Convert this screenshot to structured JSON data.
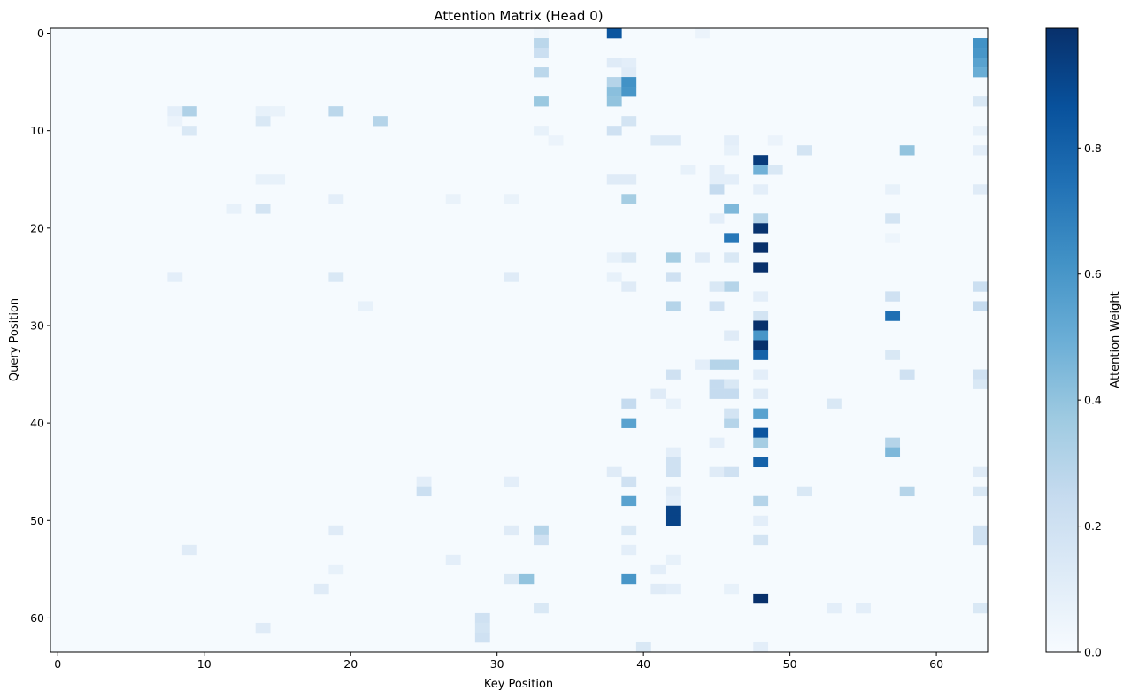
{
  "chart_data": {
    "type": "heatmap",
    "title": "Attention Matrix (Head 0)",
    "xlabel": "Key Position",
    "ylabel": "Query Position",
    "colorbar_label": "Attention Weight",
    "colormap": "Blues",
    "rows": 64,
    "cols": 64,
    "xlim": [
      -0.5,
      63.5
    ],
    "ylim": [
      63.5,
      -0.5
    ],
    "xticks": [
      0,
      10,
      20,
      30,
      40,
      50,
      60
    ],
    "yticks": [
      0,
      10,
      20,
      30,
      40,
      50,
      60
    ],
    "colorbar_range": [
      0.0,
      0.99
    ],
    "colorbar_ticks": [
      0.0,
      0.2,
      0.4,
      0.6,
      0.8
    ],
    "colorbar_tick_labels": [
      "0.0",
      "0.2",
      "0.4",
      "0.6",
      "0.8"
    ],
    "background_value": 0.01,
    "cells": [
      [
        0,
        38,
        0.85
      ],
      [
        0,
        44,
        0.06
      ],
      [
        0,
        33,
        0.04
      ],
      [
        1,
        33,
        0.28
      ],
      [
        1,
        63,
        0.62
      ],
      [
        2,
        33,
        0.22
      ],
      [
        2,
        63,
        0.6
      ],
      [
        3,
        63,
        0.55
      ],
      [
        4,
        63,
        0.5
      ],
      [
        4,
        33,
        0.28
      ],
      [
        3,
        39,
        0.1
      ],
      [
        4,
        39,
        0.12
      ],
      [
        5,
        38,
        0.3
      ],
      [
        5,
        39,
        0.62
      ],
      [
        6,
        38,
        0.42
      ],
      [
        6,
        39,
        0.6
      ],
      [
        7,
        38,
        0.4
      ],
      [
        7,
        33,
        0.38
      ],
      [
        7,
        63,
        0.15
      ],
      [
        3,
        38,
        0.12
      ],
      [
        8,
        9,
        0.32
      ],
      [
        8,
        19,
        0.28
      ],
      [
        8,
        8,
        0.1
      ],
      [
        8,
        14,
        0.08
      ],
      [
        8,
        15,
        0.07
      ],
      [
        9,
        14,
        0.15
      ],
      [
        9,
        22,
        0.3
      ],
      [
        9,
        39,
        0.18
      ],
      [
        9,
        8,
        0.06
      ],
      [
        10,
        9,
        0.15
      ],
      [
        10,
        38,
        0.2
      ],
      [
        10,
        63,
        0.08
      ],
      [
        10,
        33,
        0.08
      ],
      [
        11,
        41,
        0.14
      ],
      [
        11,
        42,
        0.14
      ],
      [
        11,
        46,
        0.1
      ],
      [
        11,
        49,
        0.06
      ],
      [
        11,
        34,
        0.06
      ],
      [
        12,
        51,
        0.18
      ],
      [
        12,
        58,
        0.4
      ],
      [
        12,
        46,
        0.08
      ],
      [
        12,
        63,
        0.1
      ],
      [
        13,
        48,
        0.95
      ],
      [
        14,
        48,
        0.48
      ],
      [
        14,
        49,
        0.15
      ],
      [
        14,
        43,
        0.08
      ],
      [
        14,
        45,
        0.1
      ],
      [
        15,
        38,
        0.12
      ],
      [
        15,
        39,
        0.12
      ],
      [
        15,
        45,
        0.1
      ],
      [
        15,
        46,
        0.1
      ],
      [
        15,
        14,
        0.08
      ],
      [
        15,
        15,
        0.08
      ],
      [
        16,
        45,
        0.25
      ],
      [
        16,
        48,
        0.1
      ],
      [
        16,
        63,
        0.12
      ],
      [
        16,
        57,
        0.08
      ],
      [
        17,
        39,
        0.35
      ],
      [
        17,
        19,
        0.1
      ],
      [
        17,
        27,
        0.07
      ],
      [
        17,
        31,
        0.07
      ],
      [
        18,
        46,
        0.45
      ],
      [
        18,
        14,
        0.18
      ],
      [
        18,
        12,
        0.08
      ],
      [
        19,
        48,
        0.3
      ],
      [
        19,
        57,
        0.18
      ],
      [
        19,
        45,
        0.1
      ],
      [
        20,
        48,
        0.98
      ],
      [
        21,
        46,
        0.72
      ],
      [
        21,
        57,
        0.05
      ],
      [
        22,
        48,
        0.99
      ],
      [
        23,
        42,
        0.35
      ],
      [
        23,
        39,
        0.15
      ],
      [
        23,
        44,
        0.12
      ],
      [
        23,
        46,
        0.15
      ],
      [
        23,
        38,
        0.08
      ],
      [
        24,
        48,
        0.99
      ],
      [
        25,
        19,
        0.15
      ],
      [
        25,
        8,
        0.1
      ],
      [
        25,
        31,
        0.12
      ],
      [
        25,
        42,
        0.2
      ],
      [
        25,
        38,
        0.08
      ],
      [
        26,
        46,
        0.3
      ],
      [
        26,
        45,
        0.15
      ],
      [
        26,
        63,
        0.22
      ],
      [
        26,
        39,
        0.12
      ],
      [
        27,
        48,
        0.1
      ],
      [
        27,
        57,
        0.2
      ],
      [
        28,
        42,
        0.3
      ],
      [
        28,
        45,
        0.2
      ],
      [
        28,
        63,
        0.25
      ],
      [
        28,
        21,
        0.08
      ],
      [
        29,
        57,
        0.75
      ],
      [
        29,
        48,
        0.18
      ],
      [
        30,
        48,
        0.99
      ],
      [
        31,
        48,
        0.6
      ],
      [
        31,
        46,
        0.12
      ],
      [
        32,
        48,
        0.99
      ],
      [
        33,
        48,
        0.8
      ],
      [
        33,
        57,
        0.15
      ],
      [
        34,
        45,
        0.3
      ],
      [
        34,
        46,
        0.3
      ],
      [
        34,
        44,
        0.1
      ],
      [
        35,
        42,
        0.2
      ],
      [
        35,
        58,
        0.2
      ],
      [
        35,
        63,
        0.2
      ],
      [
        35,
        48,
        0.1
      ],
      [
        36,
        45,
        0.25
      ],
      [
        36,
        46,
        0.15
      ],
      [
        36,
        63,
        0.15
      ],
      [
        37,
        41,
        0.12
      ],
      [
        37,
        45,
        0.25
      ],
      [
        37,
        46,
        0.25
      ],
      [
        37,
        48,
        0.12
      ],
      [
        38,
        39,
        0.25
      ],
      [
        38,
        42,
        0.08
      ],
      [
        38,
        53,
        0.15
      ],
      [
        39,
        46,
        0.18
      ],
      [
        39,
        48,
        0.55
      ],
      [
        40,
        39,
        0.55
      ],
      [
        40,
        46,
        0.3
      ],
      [
        41,
        48,
        0.85
      ],
      [
        42,
        48,
        0.35
      ],
      [
        42,
        57,
        0.3
      ],
      [
        42,
        45,
        0.1
      ],
      [
        43,
        57,
        0.45
      ],
      [
        43,
        42,
        0.1
      ],
      [
        44,
        48,
        0.8
      ],
      [
        44,
        42,
        0.2
      ],
      [
        45,
        38,
        0.12
      ],
      [
        45,
        42,
        0.2
      ],
      [
        45,
        45,
        0.12
      ],
      [
        45,
        46,
        0.2
      ],
      [
        45,
        63,
        0.12
      ],
      [
        46,
        39,
        0.2
      ],
      [
        46,
        25,
        0.1
      ],
      [
        46,
        31,
        0.1
      ],
      [
        47,
        25,
        0.22
      ],
      [
        47,
        51,
        0.15
      ],
      [
        47,
        58,
        0.3
      ],
      [
        47,
        63,
        0.15
      ],
      [
        47,
        42,
        0.12
      ],
      [
        48,
        39,
        0.55
      ],
      [
        48,
        48,
        0.3
      ],
      [
        48,
        42,
        0.1
      ],
      [
        49,
        42,
        0.92
      ],
      [
        50,
        42,
        0.92
      ],
      [
        50,
        48,
        0.1
      ],
      [
        51,
        33,
        0.3
      ],
      [
        51,
        39,
        0.15
      ],
      [
        51,
        19,
        0.12
      ],
      [
        51,
        31,
        0.12
      ],
      [
        51,
        63,
        0.2
      ],
      [
        52,
        33,
        0.2
      ],
      [
        52,
        48,
        0.18
      ],
      [
        52,
        63,
        0.2
      ],
      [
        53,
        9,
        0.12
      ],
      [
        53,
        39,
        0.1
      ],
      [
        54,
        42,
        0.08
      ],
      [
        54,
        27,
        0.1
      ],
      [
        55,
        41,
        0.1
      ],
      [
        55,
        19,
        0.08
      ],
      [
        56,
        32,
        0.4
      ],
      [
        56,
        39,
        0.6
      ],
      [
        56,
        31,
        0.15
      ],
      [
        57,
        41,
        0.12
      ],
      [
        57,
        18,
        0.12
      ],
      [
        57,
        42,
        0.1
      ],
      [
        57,
        46,
        0.08
      ],
      [
        58,
        48,
        0.99
      ],
      [
        59,
        33,
        0.15
      ],
      [
        59,
        63,
        0.15
      ],
      [
        59,
        53,
        0.1
      ],
      [
        59,
        55,
        0.1
      ],
      [
        60,
        29,
        0.2
      ],
      [
        61,
        29,
        0.18
      ],
      [
        61,
        14,
        0.12
      ],
      [
        62,
        29,
        0.2
      ],
      [
        63,
        40,
        0.15
      ],
      [
        63,
        48,
        0.1
      ]
    ]
  }
}
